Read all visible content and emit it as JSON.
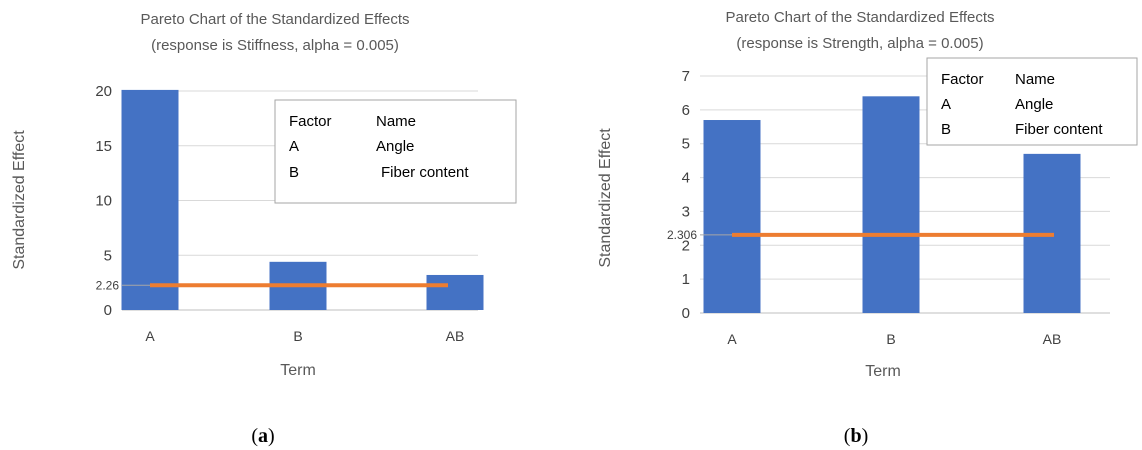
{
  "chart_data": [
    {
      "id": "a",
      "type": "bar",
      "title": "Pareto Chart of the Standardized Effects",
      "subtitle": "(response is Stiffness, alpha = 0.005)",
      "categories": [
        "A",
        "B",
        "AB"
      ],
      "values": [
        20.1,
        4.4,
        3.2
      ],
      "xlabel": "Term",
      "ylabel": "Standardized Effect",
      "ylim": [
        0,
        20
      ],
      "yticks": [
        0,
        5,
        10,
        15,
        20
      ],
      "reference_line": {
        "value": 2.26,
        "label": "2.26"
      },
      "grid": true,
      "bar_color": "#4472C4",
      "line_color": "#ED7D31",
      "legend": {
        "headers": [
          "Factor",
          "Name"
        ],
        "rows": [
          [
            "A",
            "Angle"
          ],
          [
            "B",
            "Fiber content"
          ]
        ]
      },
      "panel_label": "a"
    },
    {
      "id": "b",
      "type": "bar",
      "title": "Pareto Chart of the Standardized Effects",
      "subtitle": "(response is Strength, alpha = 0.005)",
      "categories": [
        "A",
        "B",
        "AB"
      ],
      "values": [
        5.7,
        6.4,
        4.7
      ],
      "xlabel": "Term",
      "ylabel": "Standardized Effect",
      "ylim": [
        0,
        7
      ],
      "yticks": [
        0,
        1,
        2,
        3,
        4,
        5,
        6,
        7
      ],
      "reference_line": {
        "value": 2.306,
        "label": "2.306"
      },
      "grid": true,
      "bar_color": "#4472C4",
      "line_color": "#ED7D31",
      "legend": {
        "headers": [
          "Factor",
          "Name"
        ],
        "rows": [
          [
            "A",
            "Angle"
          ],
          [
            "B",
            "Fiber content"
          ]
        ]
      },
      "panel_label": "b"
    }
  ]
}
